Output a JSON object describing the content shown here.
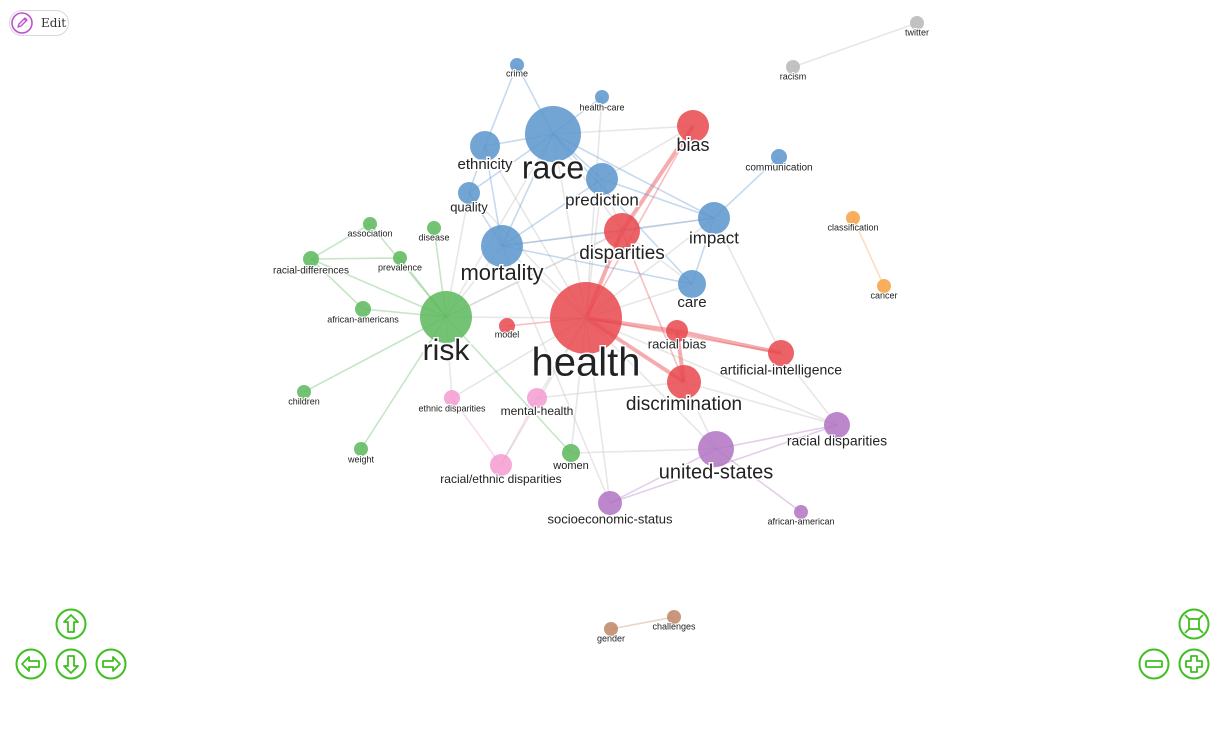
{
  "toolbar": {
    "edit_label": "Edit"
  },
  "controls": {
    "pan_up": "arrow-up-icon",
    "pan_down": "arrow-down-icon",
    "pan_left": "arrow-left-icon",
    "pan_right": "arrow-right-icon",
    "zoom_in": "plus-icon",
    "zoom_out": "minus-icon",
    "fit": "fit-screen-icon",
    "color": "#3fbf20"
  },
  "network": {
    "group_colors": {
      "red": "#e8474c",
      "blue": "#5b95cd",
      "green": "#5cb85c",
      "pink": "#f39bd0",
      "purple": "#b073c2",
      "orange": "#f7a141",
      "gray": "#b7b7b7",
      "brown": "#c08564"
    },
    "nodes": [
      {
        "id": "health",
        "label": "health",
        "group": "red"
      },
      {
        "id": "disparities",
        "label": "disparities",
        "group": "red"
      },
      {
        "id": "bias",
        "label": "bias",
        "group": "red"
      },
      {
        "id": "racial-bias",
        "label": "racial bias",
        "group": "red"
      },
      {
        "id": "artificial-intelligence",
        "label": "artificial-intelligence",
        "group": "red"
      },
      {
        "id": "discrimination",
        "label": "discrimination",
        "group": "red"
      },
      {
        "id": "model",
        "label": "model",
        "group": "red"
      },
      {
        "id": "race",
        "label": "race",
        "group": "blue"
      },
      {
        "id": "ethnicity",
        "label": "ethnicity",
        "group": "blue"
      },
      {
        "id": "quality",
        "label": "quality",
        "group": "blue"
      },
      {
        "id": "mortality",
        "label": "mortality",
        "group": "blue"
      },
      {
        "id": "prediction",
        "label": "prediction",
        "group": "blue"
      },
      {
        "id": "impact",
        "label": "impact",
        "group": "blue"
      },
      {
        "id": "care",
        "label": "care",
        "group": "blue"
      },
      {
        "id": "crime",
        "label": "crime",
        "group": "blue"
      },
      {
        "id": "health-care",
        "label": "health-care",
        "group": "blue"
      },
      {
        "id": "communication",
        "label": "communication",
        "group": "blue"
      },
      {
        "id": "risk",
        "label": "risk",
        "group": "green"
      },
      {
        "id": "association",
        "label": "association",
        "group": "green"
      },
      {
        "id": "disease",
        "label": "disease",
        "group": "green"
      },
      {
        "id": "racial-differences",
        "label": "racial-differences",
        "group": "green"
      },
      {
        "id": "prevalence",
        "label": "prevalence",
        "group": "green"
      },
      {
        "id": "african-americans",
        "label": "african-americans",
        "group": "green"
      },
      {
        "id": "children",
        "label": "children",
        "group": "green"
      },
      {
        "id": "weight",
        "label": "weight",
        "group": "green"
      },
      {
        "id": "women",
        "label": "women",
        "group": "green"
      },
      {
        "id": "ethnic-disparities",
        "label": "ethnic disparities",
        "group": "pink"
      },
      {
        "id": "mental-health",
        "label": "mental-health",
        "group": "pink"
      },
      {
        "id": "racial-ethnic-disparities",
        "label": "racial/ethnic disparities",
        "group": "pink"
      },
      {
        "id": "united-states",
        "label": "united-states",
        "group": "purple"
      },
      {
        "id": "racial-disparities",
        "label": "racial disparities",
        "group": "purple"
      },
      {
        "id": "socioeconomic-status",
        "label": "socioeconomic-status",
        "group": "purple"
      },
      {
        "id": "african-american",
        "label": "african-american",
        "group": "purple"
      },
      {
        "id": "classification",
        "label": "classification",
        "group": "orange"
      },
      {
        "id": "cancer",
        "label": "cancer",
        "group": "orange"
      },
      {
        "id": "twitter",
        "label": "twitter",
        "group": "gray"
      },
      {
        "id": "racism",
        "label": "racism",
        "group": "gray"
      },
      {
        "id": "gender",
        "label": "gender",
        "group": "brown"
      },
      {
        "id": "challenges",
        "label": "challenges",
        "group": "brown"
      }
    ],
    "edges": [
      [
        "health",
        "disparities"
      ],
      [
        "health",
        "bias"
      ],
      [
        "health",
        "racial-bias"
      ],
      [
        "health",
        "artificial-intelligence"
      ],
      [
        "health",
        "discrimination"
      ],
      [
        "health",
        "model"
      ],
      [
        "health",
        "race"
      ],
      [
        "health",
        "ethnicity"
      ],
      [
        "health",
        "quality"
      ],
      [
        "health",
        "mortality"
      ],
      [
        "health",
        "prediction"
      ],
      [
        "health",
        "impact"
      ],
      [
        "health",
        "care"
      ],
      [
        "health",
        "health-care"
      ],
      [
        "health",
        "risk"
      ],
      [
        "health",
        "mental-health"
      ],
      [
        "health",
        "racial-ethnic-disparities"
      ],
      [
        "health",
        "women"
      ],
      [
        "health",
        "united-states"
      ],
      [
        "health",
        "racial-disparities"
      ],
      [
        "health",
        "socioeconomic-status"
      ],
      [
        "health",
        "ethnic-disparities"
      ],
      [
        "disparities",
        "bias"
      ],
      [
        "disparities",
        "race"
      ],
      [
        "disparities",
        "mortality"
      ],
      [
        "disparities",
        "prediction"
      ],
      [
        "disparities",
        "discrimination"
      ],
      [
        "disparities",
        "care"
      ],
      [
        "disparities",
        "impact"
      ],
      [
        "disparities",
        "risk"
      ],
      [
        "bias",
        "race"
      ],
      [
        "bias",
        "prediction"
      ],
      [
        "racial-bias",
        "artificial-intelligence"
      ],
      [
        "racial-bias",
        "discrimination"
      ],
      [
        "discrimination",
        "united-states"
      ],
      [
        "discrimination",
        "mental-health"
      ],
      [
        "discrimination",
        "racial-disparities"
      ],
      [
        "race",
        "ethnicity"
      ],
      [
        "race",
        "quality"
      ],
      [
        "race",
        "mortality"
      ],
      [
        "race",
        "prediction"
      ],
      [
        "race",
        "crime"
      ],
      [
        "race",
        "health-care"
      ],
      [
        "race",
        "impact"
      ],
      [
        "race",
        "care"
      ],
      [
        "race",
        "risk"
      ],
      [
        "ethnicity",
        "quality"
      ],
      [
        "ethnicity",
        "mortality"
      ],
      [
        "ethnicity",
        "crime"
      ],
      [
        "quality",
        "mortality"
      ],
      [
        "quality",
        "risk"
      ],
      [
        "mortality",
        "prediction"
      ],
      [
        "mortality",
        "impact"
      ],
      [
        "mortality",
        "risk"
      ],
      [
        "mortality",
        "care"
      ],
      [
        "prediction",
        "impact"
      ],
      [
        "impact",
        "communication"
      ],
      [
        "impact",
        "care"
      ],
      [
        "artificial-intelligence",
        "impact"
      ],
      [
        "artificial-intelligence",
        "racial-disparities"
      ],
      [
        "risk",
        "association"
      ],
      [
        "risk",
        "disease"
      ],
      [
        "risk",
        "racial-differences"
      ],
      [
        "risk",
        "prevalence"
      ],
      [
        "risk",
        "african-americans"
      ],
      [
        "risk",
        "children"
      ],
      [
        "risk",
        "weight"
      ],
      [
        "risk",
        "women"
      ],
      [
        "risk",
        "ethnic-disparities"
      ],
      [
        "risk",
        "disparities"
      ],
      [
        "racial-differences",
        "association"
      ],
      [
        "racial-differences",
        "african-americans"
      ],
      [
        "racial-differences",
        "prevalence"
      ],
      [
        "mental-health",
        "racial-ethnic-disparities"
      ],
      [
        "ethnic-disparities",
        "racial-ethnic-disparities"
      ],
      [
        "united-states",
        "racial-disparities"
      ],
      [
        "united-states",
        "socioeconomic-status"
      ],
      [
        "united-states",
        "african-american"
      ],
      [
        "racial-disparities",
        "socioeconomic-status"
      ],
      [
        "women",
        "united-states"
      ],
      [
        "mortality",
        "socioeconomic-status"
      ],
      [
        "classification",
        "cancer"
      ],
      [
        "twitter",
        "racism"
      ],
      [
        "gender",
        "challenges"
      ]
    ],
    "highlight_edges": [
      [
        "health",
        "discrimination"
      ],
      [
        "health",
        "disparities"
      ],
      [
        "disparities",
        "bias"
      ],
      [
        "racial-bias",
        "artificial-intelligence"
      ],
      [
        "discrimination",
        "racial-bias"
      ],
      [
        "racial-bias",
        "health"
      ]
    ]
  }
}
